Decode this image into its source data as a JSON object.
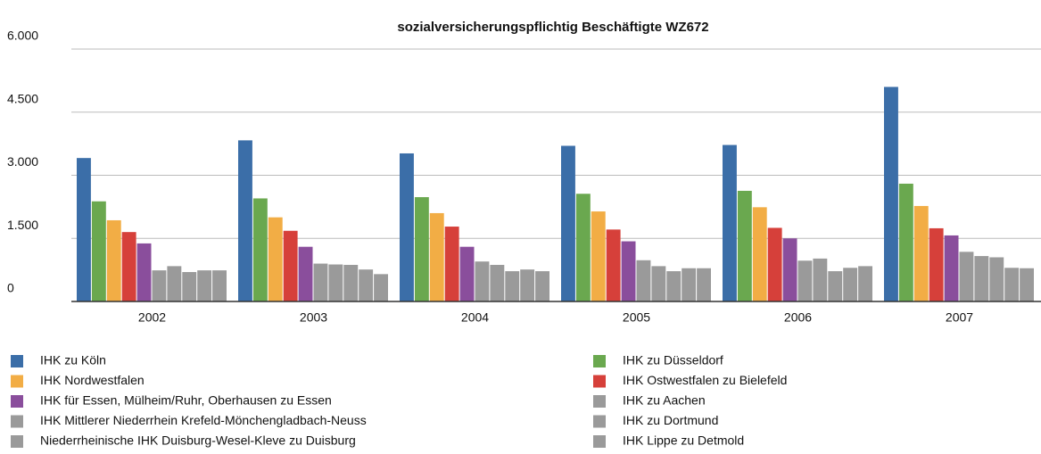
{
  "chart_data": {
    "type": "bar",
    "title": "sozialversicherungspflichtig Beschäftigte WZ672",
    "categories": [
      "2002",
      "2003",
      "2004",
      "2005",
      "2006",
      "2007"
    ],
    "series": [
      {
        "name": "IHK zu Köln",
        "color": "#3b6ea8",
        "values": [
          3410,
          3830,
          3520,
          3700,
          3720,
          5100
        ]
      },
      {
        "name": "IHK zu Düsseldorf",
        "color": "#6aa84f",
        "values": [
          2380,
          2450,
          2480,
          2560,
          2630,
          2800
        ]
      },
      {
        "name": "IHK Nordwestfalen",
        "color": "#f2ad45",
        "values": [
          1930,
          2000,
          2100,
          2140,
          2240,
          2270
        ]
      },
      {
        "name": "IHK Ostwestfalen zu Bielefeld",
        "color": "#d6403a",
        "values": [
          1650,
          1680,
          1780,
          1710,
          1750,
          1740
        ]
      },
      {
        "name": "IHK für Essen, Mülheim/Ruhr, Oberhausen zu Essen",
        "color": "#8a4e9c",
        "values": [
          1380,
          1300,
          1300,
          1430,
          1500,
          1570
        ]
      },
      {
        "name": "IHK zu Aachen",
        "color": "#9a9a9a",
        "values": [
          740,
          900,
          950,
          980,
          970,
          1180
        ]
      },
      {
        "name": "IHK Mittlerer Niederrhein Krefeld-Mönchengladbach-Neuss",
        "color": "#9a9a9a",
        "values": [
          840,
          880,
          870,
          840,
          1020,
          1080
        ]
      },
      {
        "name": "IHK zu Dortmund",
        "color": "#9a9a9a",
        "values": [
          700,
          870,
          720,
          720,
          720,
          1050
        ]
      },
      {
        "name": "Niederrheinische IHK Duisburg-Wesel-Kleve zu Duisburg",
        "color": "#9a9a9a",
        "values": [
          740,
          760,
          760,
          790,
          800,
          800
        ]
      },
      {
        "name": "IHK Lippe zu Detmold",
        "color": "#9a9a9a",
        "values": [
          740,
          650,
          720,
          790,
          840,
          790
        ]
      }
    ],
    "ylim": [
      0,
      6000
    ],
    "yticks": [
      0,
      {
        "value": 1500,
        "label": "1.500"
      },
      {
        "value": 3000,
        "label": "3.000"
      },
      {
        "value": 4500,
        "label": "4.500"
      },
      {
        "value": 6000,
        "label": "6.000"
      }
    ],
    "grid": true
  }
}
